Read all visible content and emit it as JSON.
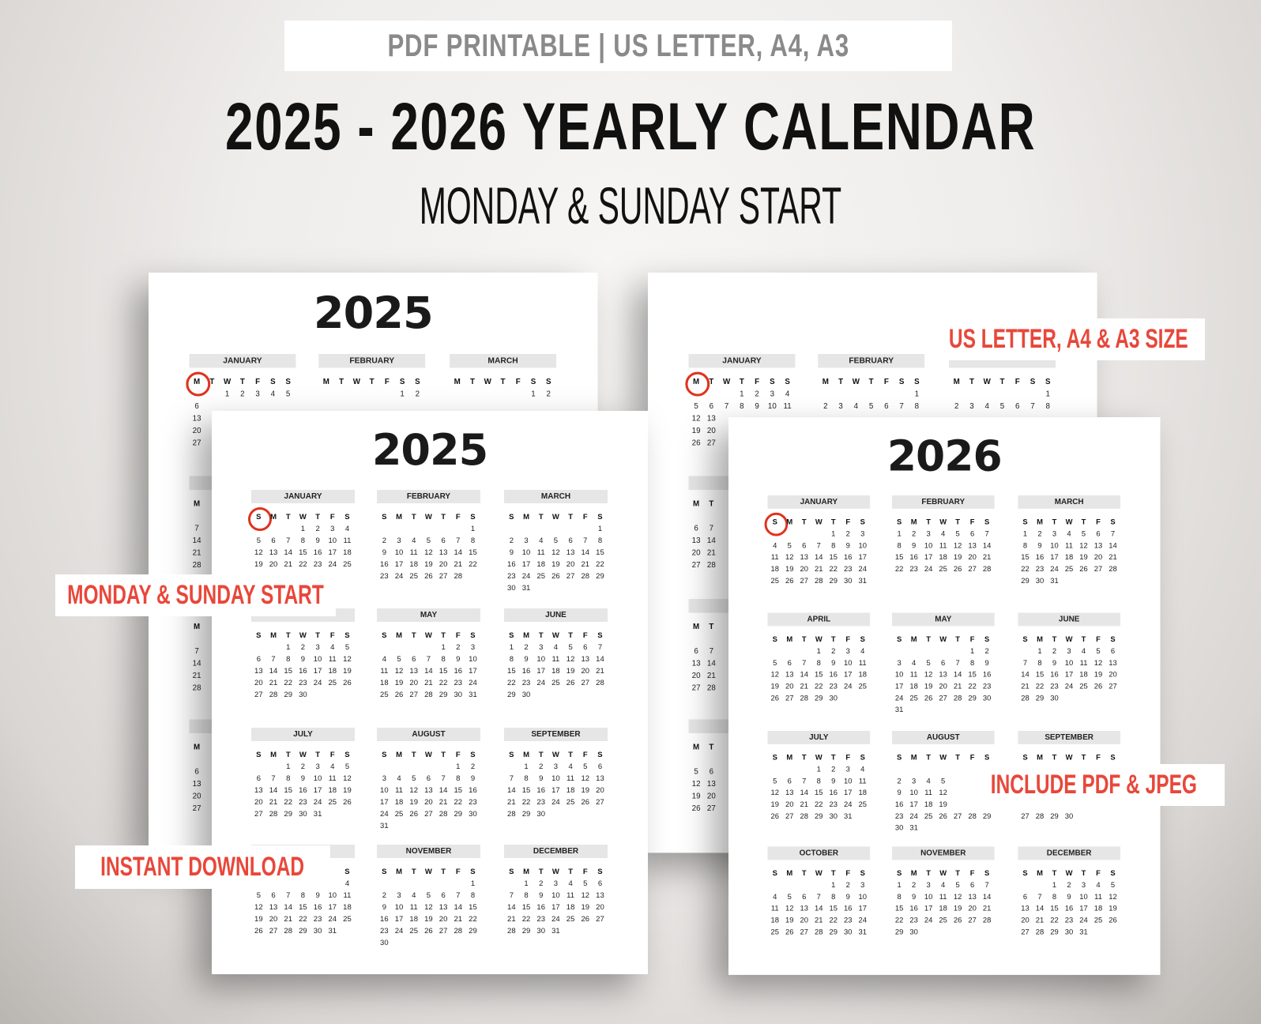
{
  "banner": "PDF PRINTABLE | US LETTER, A4, A3",
  "title": "2025 - 2026 YEARLY CALENDAR",
  "subtitle": "MONDAY & SUNDAY START",
  "tags": {
    "size": "US LETTER, A4 & A3 SIZE",
    "start": "MONDAY & SUNDAY START",
    "formats": "INCLUDE PDF & JPEG",
    "download": "INSTANT DOWNLOAD"
  },
  "colors": {
    "accent": "#e8473a",
    "circle": "#e0321f",
    "month_header_bg": "#e6e6e7"
  },
  "months": [
    "JANUARY",
    "FEBRUARY",
    "MARCH",
    "APRIL",
    "MAY",
    "JUNE",
    "JULY",
    "AUGUST",
    "SEPTEMBER",
    "OCTOBER",
    "NOVEMBER",
    "DECEMBER"
  ],
  "pages": [
    {
      "year": "2025",
      "week_start": "monday",
      "weekdays": [
        "M",
        "T",
        "W",
        "T",
        "F",
        "S",
        "S"
      ]
    },
    {
      "year": "2026",
      "week_start": "monday",
      "weekdays": [
        "M",
        "T",
        "W",
        "T",
        "F",
        "S",
        "S"
      ]
    },
    {
      "year": "2025",
      "week_start": "sunday",
      "weekdays": [
        "S",
        "M",
        "T",
        "W",
        "T",
        "F",
        "S"
      ]
    },
    {
      "year": "2026",
      "week_start": "sunday",
      "weekdays": [
        "S",
        "M",
        "T",
        "W",
        "T",
        "F",
        "S"
      ]
    }
  ]
}
